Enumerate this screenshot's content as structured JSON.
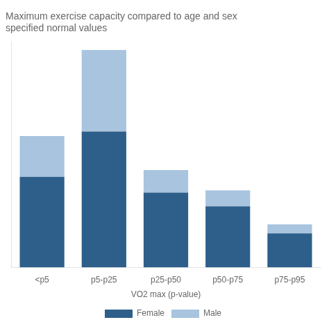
{
  "chart_data": {
    "type": "bar",
    "title": "Maximum exercise capacity compared to age and sex\nspecified normal values",
    "categories": [
      "<p5",
      "p5-p25",
      "p25-p50",
      "p50-p75",
      "p75-p95"
    ],
    "series": [
      {
        "name": "Female",
        "color": "#2E5F8A",
        "values": [
          40,
          60,
          33,
          27,
          15
        ]
      },
      {
        "name": "Male",
        "color": "#A8C4DF",
        "values": [
          18,
          36,
          10,
          7,
          4
        ]
      }
    ],
    "xlabel": "VO2 max (p-value)",
    "stacked": true,
    "ylim": [
      0,
      99.84
    ],
    "yticks": [],
    "grid": false,
    "legend": "bottom",
    "tick_labels": "x"
  }
}
